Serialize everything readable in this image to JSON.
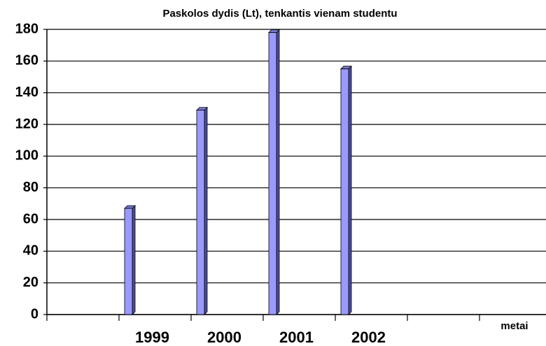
{
  "chart_data": {
    "type": "bar",
    "title": "Paskolos dydis (Lt), tenkantis vienam studentu",
    "x_label": "metai",
    "categories": [
      null,
      "1999",
      "2000",
      "2001",
      "2002",
      null,
      null
    ],
    "values": [
      null,
      67,
      129,
      178,
      155,
      null,
      null
    ],
    "color": "#9999ff",
    "ylim": [
      0,
      180
    ],
    "yticks": [
      0,
      20,
      40,
      60,
      80,
      100,
      120,
      140,
      160,
      180
    ],
    "grid": true
  }
}
